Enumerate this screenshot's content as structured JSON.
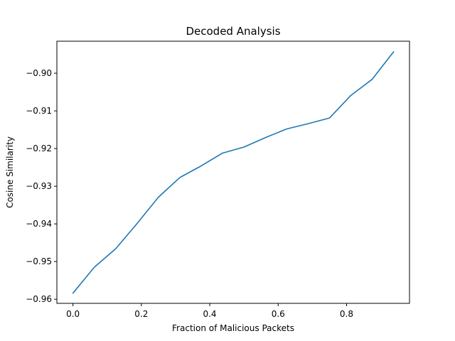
{
  "chart_data": {
    "type": "line",
    "title": "Decoded Analysis",
    "xlabel": "Fraction of Malicious Packets",
    "ylabel": "Cosine Similarity",
    "xlim": [
      -0.047,
      0.984
    ],
    "ylim": [
      -0.9611,
      -0.8915
    ],
    "xticks": [
      0.0,
      0.2,
      0.4,
      0.6,
      0.8
    ],
    "xtick_labels": [
      "0.0",
      "0.2",
      "0.4",
      "0.6",
      "0.8"
    ],
    "yticks": [
      -0.96,
      -0.95,
      -0.94,
      -0.93,
      -0.92,
      -0.91,
      -0.9
    ],
    "ytick_labels": [
      "−0.96",
      "−0.95",
      "−0.94",
      "−0.93",
      "−0.92",
      "−0.91",
      "−0.90"
    ],
    "grid": false,
    "series": [
      {
        "color": "#1f77b4",
        "x": [
          0.0,
          0.0625,
          0.125,
          0.1875,
          0.25,
          0.3125,
          0.375,
          0.4375,
          0.5,
          0.5625,
          0.625,
          0.6875,
          0.75,
          0.8125,
          0.875,
          0.9375
        ],
        "y": [
          -0.9584,
          -0.9515,
          -0.9466,
          -0.9399,
          -0.9329,
          -0.9277,
          -0.9246,
          -0.9212,
          -0.9196,
          -0.9171,
          -0.9148,
          -0.9134,
          -0.9119,
          -0.9059,
          -0.9016,
          -0.8943
        ]
      }
    ]
  }
}
